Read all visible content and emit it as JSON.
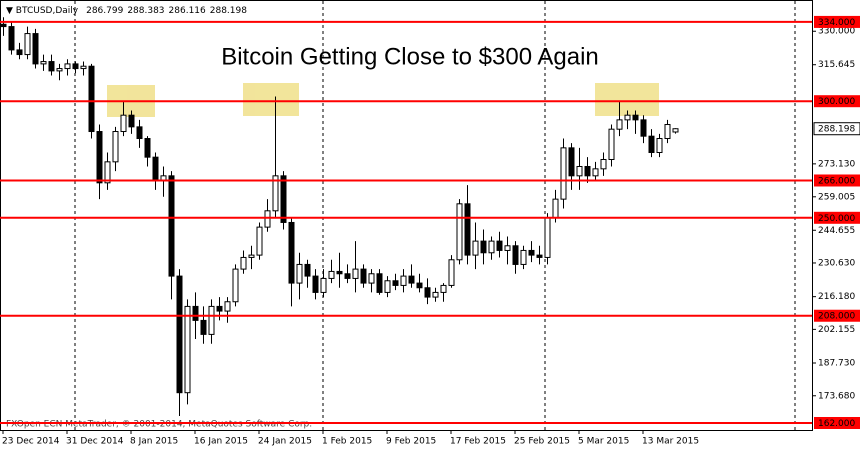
{
  "chart_data": {
    "type": "candlestick",
    "title": "Bitcoin Getting Close to $300 Again",
    "symbol": "BTCUSD,Daily",
    "footer": "FXOpen ECN MetaTrader, © 2001-2014, MetaQuotes Software Corp.",
    "categories": [
      "23 Dec 2014",
      null,
      null,
      null,
      null,
      null,
      null,
      null,
      "31 Dec 2014",
      null,
      null,
      null,
      null,
      null,
      null,
      null,
      "8 Jan 2015",
      null,
      null,
      null,
      null,
      null,
      null,
      null,
      "16 Jan 2015",
      null,
      null,
      null,
      null,
      null,
      null,
      null,
      "24 Jan 2015",
      null,
      null,
      null,
      null,
      null,
      null,
      null,
      "1 Feb 2015",
      null,
      null,
      null,
      null,
      null,
      null,
      null,
      "9 Feb 2015",
      null,
      null,
      null,
      null,
      null,
      null,
      null,
      "17 Feb 2015",
      null,
      null,
      null,
      null,
      null,
      null,
      null,
      "25 Feb 2015",
      null,
      null,
      null,
      null,
      null,
      null,
      null,
      "5 Mar 2015",
      null,
      null,
      null,
      null,
      null,
      null,
      null,
      "13 Mar 2015",
      null,
      null,
      null,
      null
    ],
    "open": [
      333,
      332,
      322,
      320,
      329,
      316,
      317,
      313,
      314,
      316,
      314,
      315,
      287,
      265,
      274,
      287,
      294,
      289,
      284,
      276,
      266,
      268,
      225,
      175,
      212,
      206,
      200,
      212,
      210,
      214,
      228,
      233,
      234,
      246,
      253,
      268,
      248,
      222,
      230,
      225,
      218,
      224,
      227,
      226,
      224,
      228,
      222,
      226,
      218,
      223,
      221,
      225,
      222,
      220,
      216,
      218,
      221,
      232,
      256,
      234,
      240,
      235,
      240,
      236,
      238,
      230,
      236,
      234,
      233,
      250,
      258,
      280,
      268,
      272,
      268,
      271,
      275,
      288,
      292,
      294,
      292,
      285,
      278,
      284,
      286.799
    ],
    "high": [
      336,
      334,
      325,
      332,
      331,
      320,
      320,
      316,
      318,
      317,
      317,
      316,
      290,
      278,
      289,
      300,
      296,
      292,
      285,
      278,
      272,
      270,
      228,
      215,
      218,
      212,
      215,
      216,
      216,
      230,
      236,
      238,
      248,
      258,
      302,
      270,
      250,
      235,
      232,
      228,
      228,
      232,
      235,
      230,
      240,
      230,
      228,
      228,
      225,
      226,
      228,
      230,
      226,
      224,
      220,
      222,
      234,
      258,
      264,
      248,
      245,
      242,
      244,
      242,
      240,
      238,
      240,
      238,
      252,
      262,
      284,
      282,
      280,
      276,
      274,
      278,
      290,
      300,
      296,
      296,
      294,
      288,
      286,
      292,
      288.383
    ],
    "low": [
      328,
      320,
      318,
      318,
      314,
      313,
      311,
      309,
      311,
      312,
      311,
      284,
      258,
      262,
      270,
      285,
      286,
      280,
      272,
      262,
      259,
      215,
      165,
      170,
      198,
      196,
      196,
      206,
      205,
      212,
      226,
      228,
      232,
      244,
      250,
      245,
      212,
      215,
      220,
      215,
      216,
      222,
      220,
      222,
      218,
      220,
      218,
      217,
      216,
      219,
      218,
      220,
      218,
      213,
      214,
      214,
      220,
      230,
      230,
      228,
      230,
      232,
      233,
      230,
      226,
      228,
      231,
      230,
      230,
      248,
      254,
      262,
      262,
      265,
      266,
      268,
      272,
      285,
      288,
      286,
      282,
      276,
      276,
      282,
      286.116
    ],
    "close": [
      332,
      322,
      320,
      329,
      316,
      317,
      313,
      314,
      316,
      314,
      315,
      287,
      265,
      274,
      287,
      294,
      289,
      284,
      276,
      266,
      268,
      225,
      175,
      212,
      206,
      200,
      212,
      210,
      214,
      228,
      233,
      234,
      246,
      253,
      268,
      248,
      222,
      230,
      225,
      218,
      224,
      227,
      226,
      224,
      228,
      222,
      226,
      218,
      223,
      221,
      225,
      222,
      220,
      216,
      218,
      221,
      232,
      256,
      234,
      240,
      235,
      240,
      236,
      238,
      230,
      236,
      234,
      233,
      250,
      258,
      280,
      268,
      272,
      268,
      271,
      275,
      288,
      292,
      294,
      292,
      285,
      278,
      284,
      290,
      288.198
    ],
    "ylim": [
      159,
      343.4
    ],
    "yticks": [
      {
        "value": 330,
        "label": "330.000"
      },
      {
        "value": 315.645,
        "label": "315.645"
      },
      {
        "value": 273.13,
        "label": "273.130"
      },
      {
        "value": 259.005,
        "label": "259.005"
      },
      {
        "value": 244.655,
        "label": "244.655"
      },
      {
        "value": 230.63,
        "label": "230.630"
      },
      {
        "value": 216.18,
        "label": "216.180"
      },
      {
        "value": 202.155,
        "label": "202.155"
      },
      {
        "value": 187.73,
        "label": "187.730"
      },
      {
        "value": 173.68,
        "label": "173.680"
      }
    ],
    "levels": [
      {
        "value": 334,
        "label": "334.000"
      },
      {
        "value": 300,
        "label": "300.000"
      },
      {
        "value": 266,
        "label": "266.000"
      },
      {
        "value": 250,
        "label": "250.000"
      },
      {
        "value": 208,
        "label": "208.000"
      },
      {
        "value": 162,
        "label": "162.000"
      }
    ],
    "level_color": "#ff0000",
    "up_color": "#ffffff",
    "down_color": "#000000"
  }
}
